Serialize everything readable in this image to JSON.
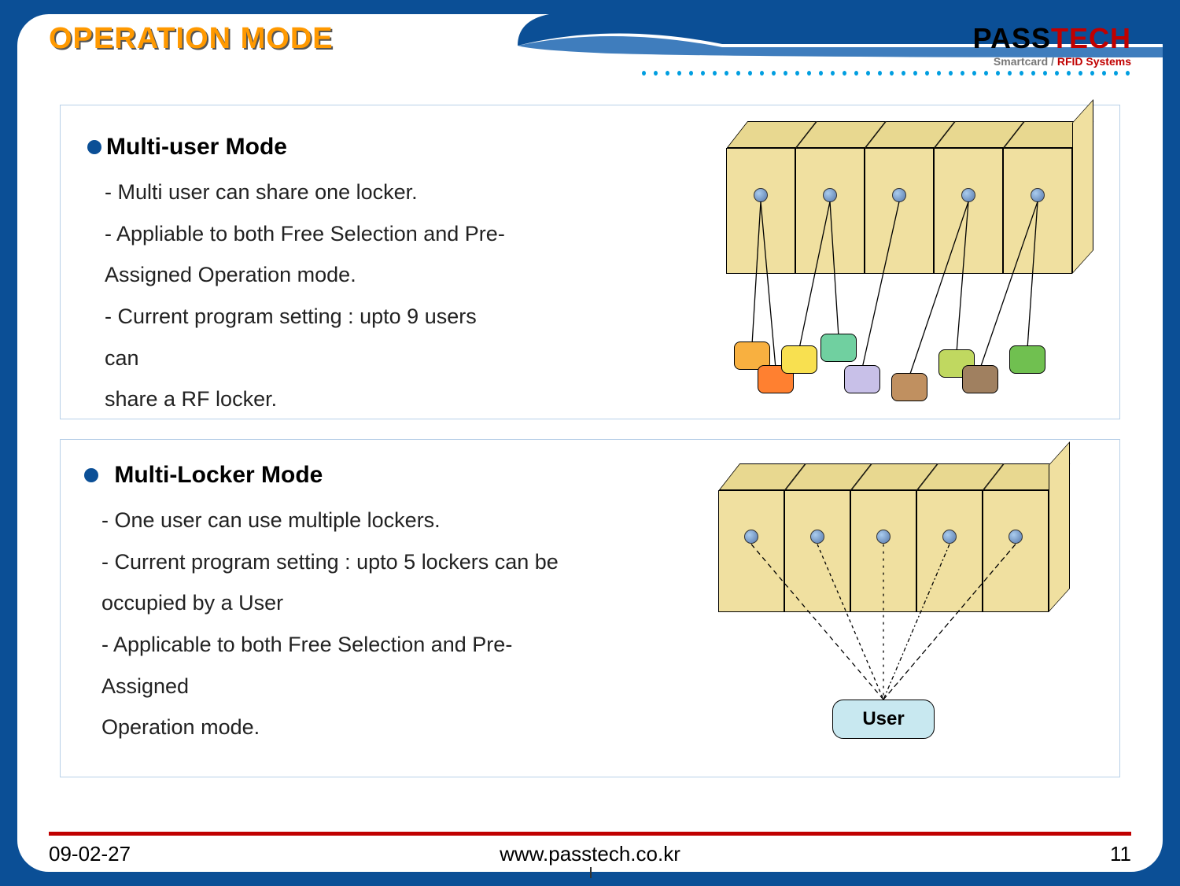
{
  "slide": {
    "title": "OPERATION MODE",
    "title_color": "#ff9900",
    "title_shadow": "#555555",
    "title_fontsize": 38,
    "background_outer": "#0b4f96",
    "background_inner": "#ffffff",
    "corner_radius": 40
  },
  "logo": {
    "pass": "PASS",
    "tech": "TECH",
    "subtitle_prefix": "Smartcard / ",
    "subtitle_rfid": "RFID Systems",
    "pass_color": "#000000",
    "tech_color": "#c00000",
    "sub_color": "#777777"
  },
  "sections": {
    "multi_user": {
      "heading": "Multi-user Mode",
      "bullets": [
        "- Multi user can share one locker.",
        "-  Appliable to both Free Selection and Pre-",
        "   Assigned Operation mode.",
        "- Current program setting : upto 9 users can",
        "   share a RF locker."
      ],
      "diagram": {
        "type": "infographic",
        "locker_count": 5,
        "locker_fill": "#f0e0a0",
        "locker_top_fill": "#e8d890",
        "locker_border": "#000000",
        "card_colors": [
          "#f8b040",
          "#ff8030",
          "#f8e050",
          "#70d0a0",
          "#c8c0e8",
          "#c09060",
          "#c0d860",
          "#a08060",
          "#70c050"
        ],
        "connections": [
          {
            "locker": 0,
            "cards": [
              0,
              1
            ]
          },
          {
            "locker": 1,
            "cards": [
              2,
              3
            ]
          },
          {
            "locker": 2,
            "cards": [
              4
            ]
          },
          {
            "locker": 3,
            "cards": [
              5,
              6
            ]
          },
          {
            "locker": 4,
            "cards": [
              7,
              8
            ]
          }
        ]
      }
    },
    "multi_locker": {
      "heading": "Multi-Locker Mode",
      "bullets": [
        "- One user can use multiple lockers.",
        "- Current program setting : upto 5 lockers can be",
        "   occupied by a  User",
        "- Applicable to both Free Selection and Pre-Assigned",
        "  Operation mode."
      ],
      "diagram": {
        "type": "infographic",
        "locker_count": 5,
        "locker_fill": "#f0e0a0",
        "locker_top_fill": "#e8d890",
        "locker_border": "#000000",
        "user_label": "User",
        "user_fill": "#c8e8f0",
        "line_style": "dashed"
      }
    }
  },
  "panel_border": "#b8d0e8",
  "bullet_color": "#0b4f96",
  "dots_color": "#009ee0",
  "footer": {
    "date": "09-02-27",
    "url": "www.passtech.co.kr",
    "page": "11",
    "line_color": "#c00000",
    "fontsize": 26
  }
}
